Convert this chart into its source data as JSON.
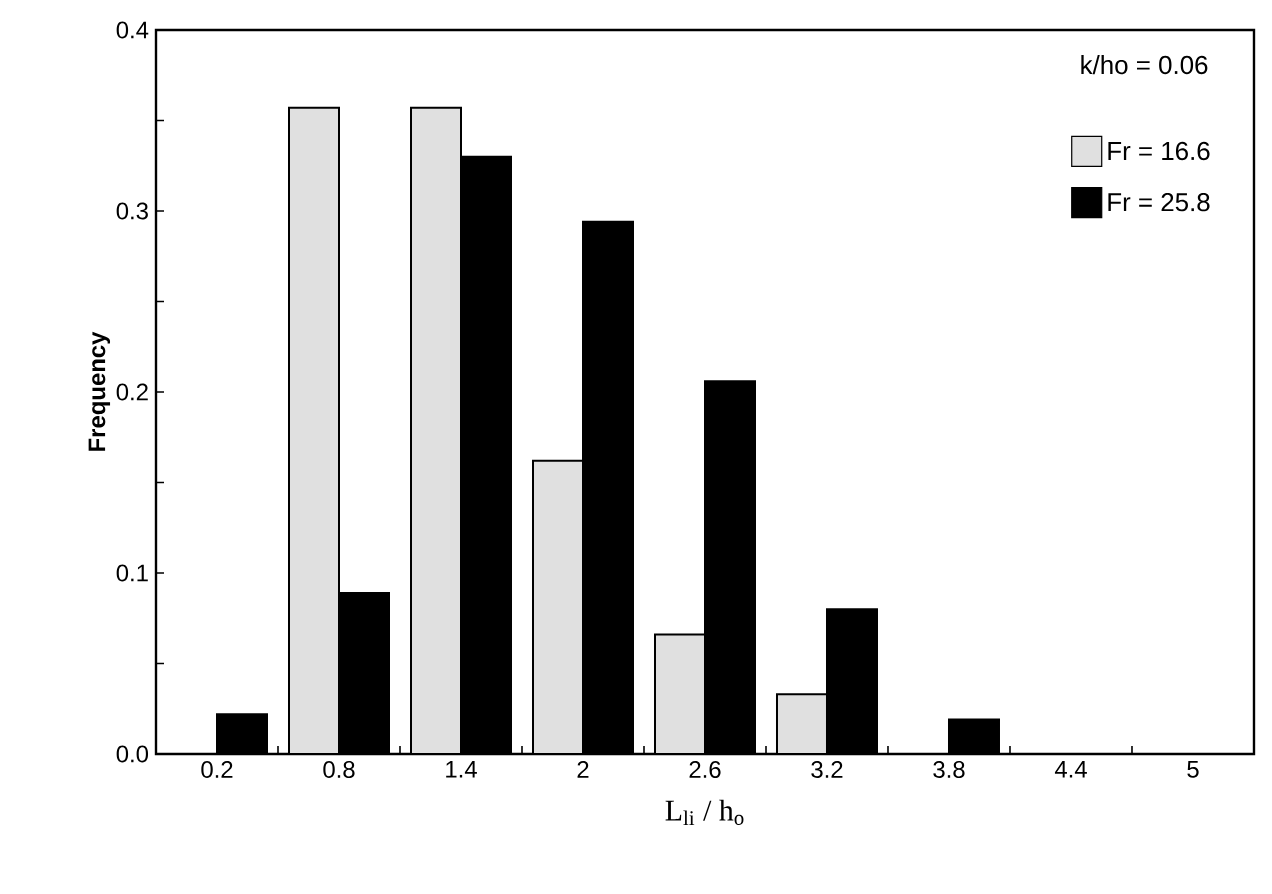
{
  "chart_data": {
    "type": "bar",
    "xlabel": "L$_{li}$ / h$_{o}$",
    "ylabel": "Frequency",
    "categories": [
      "0.2",
      "0.8",
      "1.4",
      "2",
      "2.6",
      "3.2",
      "3.8",
      "4.4",
      "5"
    ],
    "series": [
      {
        "name": "Fr = 16.6",
        "color": "#e0e0e0",
        "values": [
          0,
          0.357,
          0.357,
          0.162,
          0.066,
          0.033,
          0,
          0,
          0
        ]
      },
      {
        "name": "Fr = 25.8",
        "color": "#000000",
        "values": [
          0.022,
          0.089,
          0.33,
          0.294,
          0.206,
          0.08,
          0.019,
          0,
          0
        ]
      }
    ],
    "ylim": [
      0,
      0.4
    ],
    "yticks": [
      {
        "value": 0,
        "label": "0.0"
      },
      {
        "value": 0.05,
        "label": null
      },
      {
        "value": 0.1,
        "label": "0.1"
      },
      {
        "value": 0.15,
        "label": null
      },
      {
        "value": 0.2,
        "label": "0.2"
      },
      {
        "value": 0.25,
        "label": null
      },
      {
        "value": 0.3,
        "label": "0.3"
      },
      {
        "value": 0.35,
        "label": null
      },
      {
        "value": 0.4,
        "label": "0.4"
      }
    ],
    "annotations": [
      "k/ho    = 0.06"
    ],
    "legend": "top right",
    "grid": false
  }
}
